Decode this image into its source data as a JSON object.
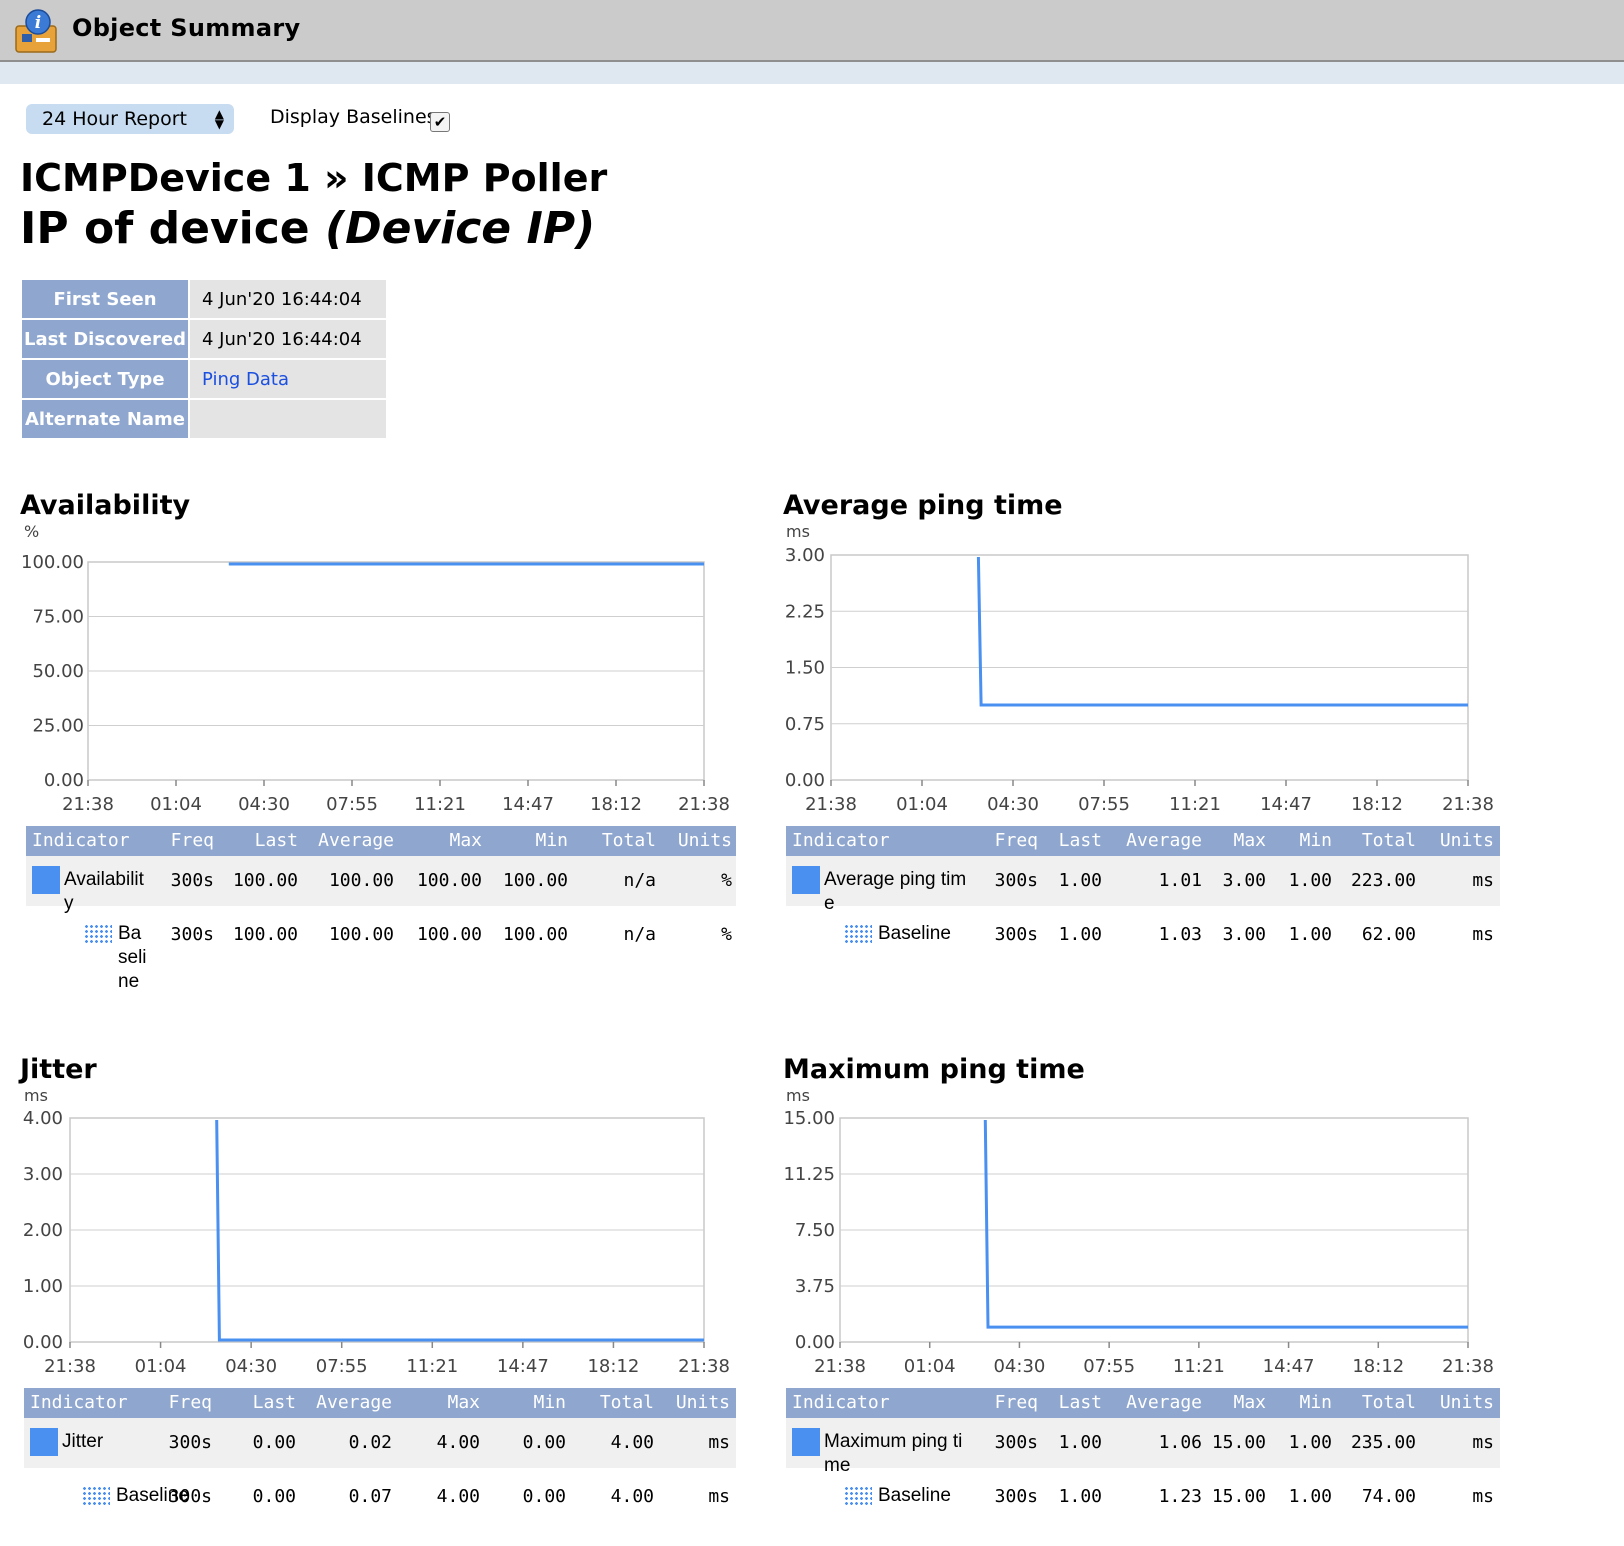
{
  "window": {
    "title": "Object Summary",
    "icon": "info-icon"
  },
  "controls": {
    "report_select": "24 Hour Report",
    "display_baselines_label": "Display Baselines",
    "display_baselines_checked": true
  },
  "heading": {
    "line1": "ICMPDevice 1 » ICMP Poller",
    "line2_main": "IP of device ",
    "line2_italic": "(Device IP)"
  },
  "info": [
    {
      "label": "First Seen",
      "value": "4 Jun'20 16:44:04"
    },
    {
      "label": "Last Discovered",
      "value": "4 Jun'20 16:44:04"
    },
    {
      "label": "Object Type",
      "value": "Ping Data"
    },
    {
      "label": "Alternate Name",
      "value": ""
    }
  ],
  "table_headers": [
    "Indicator",
    "Freq",
    "Last",
    "Average",
    "Max",
    "Min",
    "Total",
    "Units"
  ],
  "chart_data": [
    {
      "type": "line",
      "title": "Availability",
      "ylabel": "%",
      "yticks": [
        "0.00",
        "25.00",
        "50.00",
        "75.00",
        "100.00"
      ],
      "ylim": [
        0,
        100
      ],
      "xticks": [
        "21:38",
        "01:04",
        "04:30",
        "07:55",
        "11:21",
        "14:47",
        "18:12",
        "21:38"
      ],
      "series": [
        {
          "name": "Availability",
          "points": [
            [
              1.6,
              100
            ],
            [
              7,
              100
            ]
          ]
        }
      ],
      "rows": [
        {
          "indicator": "Availability",
          "freq": "300s",
          "last": "100.00",
          "average": "100.00",
          "max": "100.00",
          "min": "100.00",
          "total": "n/a",
          "units": "%"
        },
        {
          "indicator": "Baseline",
          "freq": "300s",
          "last": "100.00",
          "average": "100.00",
          "max": "100.00",
          "min": "100.00",
          "total": "n/a",
          "units": "%"
        }
      ]
    },
    {
      "type": "line",
      "title": "Average ping time",
      "ylabel": "ms",
      "yticks": [
        "0.00",
        "0.75",
        "1.50",
        "2.25",
        "3.00"
      ],
      "ylim": [
        0,
        3
      ],
      "xticks": [
        "21:38",
        "01:04",
        "04:30",
        "07:55",
        "11:21",
        "14:47",
        "18:12",
        "21:38"
      ],
      "series": [
        {
          "name": "Average ping time",
          "points": [
            [
              1.62,
              3.0
            ],
            [
              1.65,
              1.0
            ],
            [
              7,
              1.0
            ]
          ]
        }
      ],
      "rows": [
        {
          "indicator": "Average ping time",
          "freq": "300s",
          "last": "1.00",
          "average": "1.01",
          "max": "3.00",
          "min": "1.00",
          "total": "223.00",
          "units": "ms"
        },
        {
          "indicator": "Baseline",
          "freq": "300s",
          "last": "1.00",
          "average": "1.03",
          "max": "3.00",
          "min": "1.00",
          "total": "62.00",
          "units": "ms"
        }
      ]
    },
    {
      "type": "line",
      "title": "Jitter",
      "ylabel": "ms",
      "yticks": [
        "0.00",
        "1.00",
        "2.00",
        "3.00",
        "4.00"
      ],
      "ylim": [
        0,
        4
      ],
      "xticks": [
        "21:38",
        "01:04",
        "04:30",
        "07:55",
        "11:21",
        "14:47",
        "18:12",
        "21:38"
      ],
      "series": [
        {
          "name": "Jitter",
          "points": [
            [
              1.62,
              4.0
            ],
            [
              1.65,
              0.0
            ],
            [
              7,
              0.0
            ]
          ]
        }
      ],
      "rows": [
        {
          "indicator": "Jitter",
          "freq": "300s",
          "last": "0.00",
          "average": "0.02",
          "max": "4.00",
          "min": "0.00",
          "total": "4.00",
          "units": "ms"
        },
        {
          "indicator": "Baseline",
          "freq": "300s",
          "last": "0.00",
          "average": "0.07",
          "max": "4.00",
          "min": "0.00",
          "total": "4.00",
          "units": "ms"
        }
      ]
    },
    {
      "type": "line",
      "title": "Maximum ping time",
      "ylabel": "ms",
      "yticks": [
        "0.00",
        "3.75",
        "7.50",
        "11.25",
        "15.00"
      ],
      "ylim": [
        0,
        15
      ],
      "xticks": [
        "21:38",
        "01:04",
        "04:30",
        "07:55",
        "11:21",
        "14:47",
        "18:12",
        "21:38"
      ],
      "series": [
        {
          "name": "Maximum ping time",
          "points": [
            [
              1.62,
              15.0
            ],
            [
              1.65,
              1.0
            ],
            [
              7,
              1.0
            ]
          ]
        }
      ],
      "rows": [
        {
          "indicator": "Maximum ping time",
          "freq": "300s",
          "last": "1.00",
          "average": "1.06",
          "max": "15.00",
          "min": "1.00",
          "total": "235.00",
          "units": "ms"
        },
        {
          "indicator": "Baseline",
          "freq": "300s",
          "last": "1.00",
          "average": "1.23",
          "max": "15.00",
          "min": "1.00",
          "total": "74.00",
          "units": "ms"
        }
      ]
    }
  ]
}
